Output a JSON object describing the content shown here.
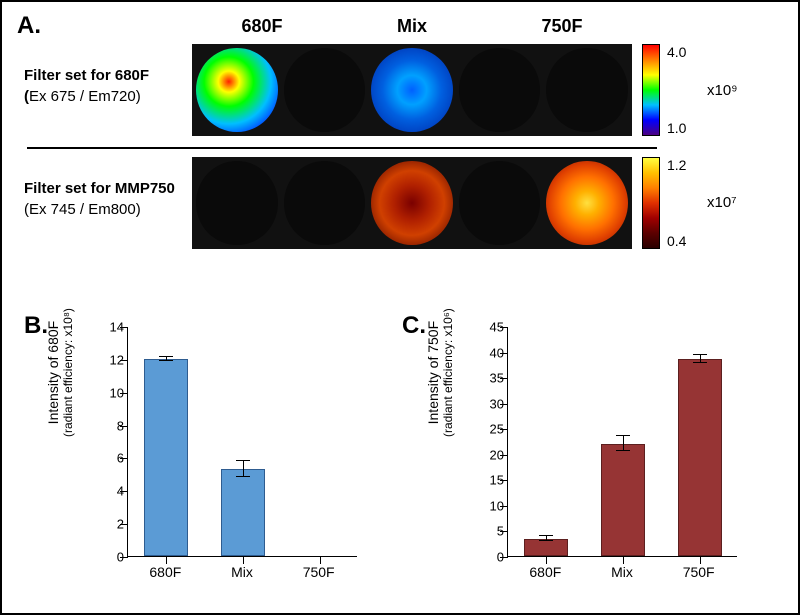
{
  "panelA": {
    "label": "A.",
    "columns": [
      "680F",
      "Mix",
      "750F"
    ],
    "row1": {
      "title": "Filter set for 680F",
      "subtitle": "(Ex 675 / Em720)",
      "colorbar": {
        "max": "4.0",
        "min": "1.0",
        "exp": "x10⁹",
        "gradient": [
          "#4b0082",
          "#0000ff",
          "#00bfff",
          "#00ff00",
          "#ffff00",
          "#ff8000",
          "#ff0000"
        ]
      }
    },
    "row2": {
      "title": "Filter set for MMP750",
      "subtitle": "(Ex 745 / Em800)",
      "colorbar": {
        "max": "1.2",
        "min": "0.4",
        "exp": "x10⁷",
        "gradient": [
          "#2a0000",
          "#5c0000",
          "#a00000",
          "#e03000",
          "#ff8000",
          "#ffc000",
          "#ffff40"
        ]
      }
    }
  },
  "panelB": {
    "label": "B.",
    "y_title": "Intensity of 680F",
    "y_sub": "(radiant efficiency: x10⁸)",
    "y_max": 14,
    "y_step": 2,
    "categories": [
      "680F",
      "Mix",
      "750F"
    ],
    "values": [
      12.0,
      5.3,
      0.0
    ],
    "errors": [
      0.1,
      0.5,
      0.0
    ],
    "bar_color": "#5b9bd5",
    "border": "#2e5c90"
  },
  "panelC": {
    "label": "C.",
    "y_title": "Intensity of 750F",
    "y_sub": "(radiant efficiency: x10⁶)",
    "y_max": 45,
    "y_step": 5,
    "categories": [
      "680F",
      "Mix",
      "750F"
    ],
    "values": [
      3.4,
      22.0,
      38.5
    ],
    "errors": [
      0.5,
      1.5,
      0.8
    ],
    "bar_color": "#963434",
    "border": "#5c1f1f"
  }
}
